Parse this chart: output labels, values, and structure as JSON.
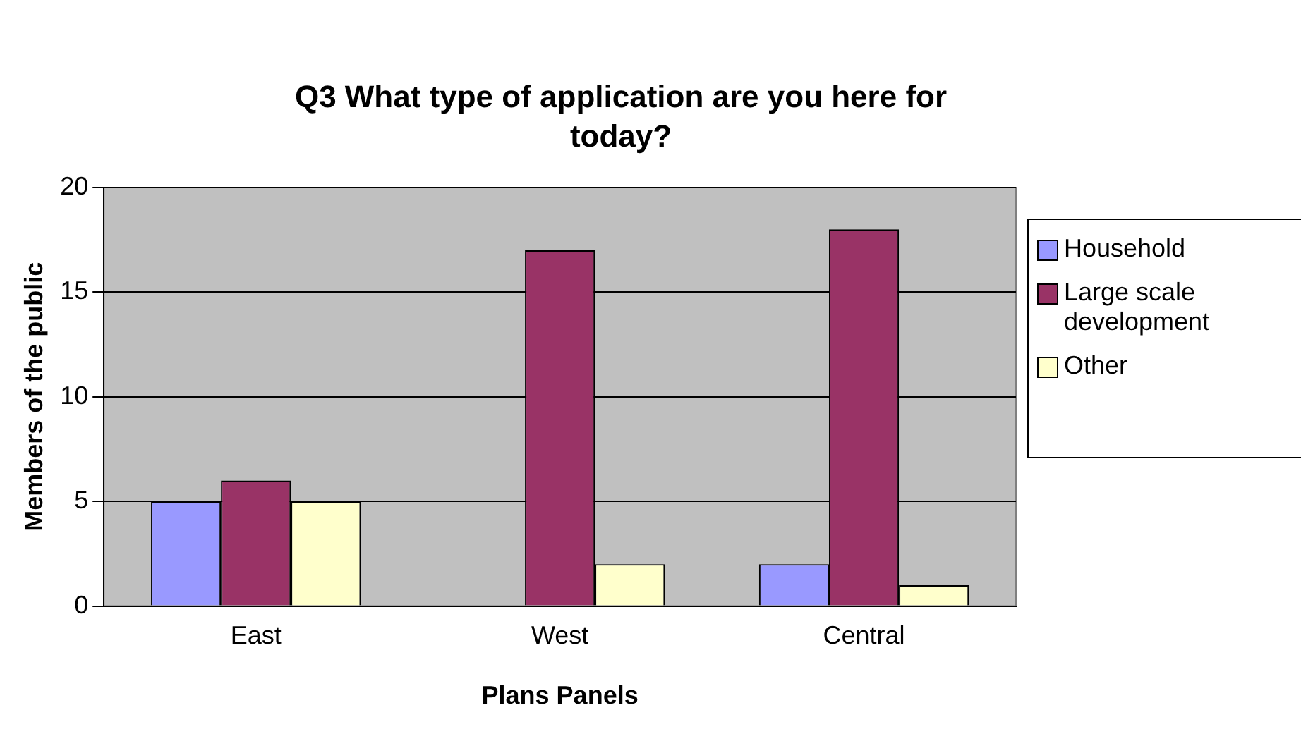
{
  "chart_data": {
    "type": "bar",
    "title": "Q3 What type of application are you here for today?",
    "xlabel": "Plans Panels",
    "ylabel": "Members of the public",
    "categories": [
      "East",
      "West",
      "Central"
    ],
    "series": [
      {
        "name": "Household",
        "color": "#9999ff",
        "values": [
          5,
          0,
          2
        ]
      },
      {
        "name": "Large scale development",
        "color": "#993366",
        "values": [
          6,
          17,
          18
        ]
      },
      {
        "name": "Other",
        "color": "#ffffcc",
        "values": [
          5,
          2,
          1
        ]
      }
    ],
    "ylim": [
      0,
      20
    ],
    "yticks": [
      0,
      5,
      10,
      15,
      20
    ],
    "grid": "y",
    "legend": "right"
  }
}
